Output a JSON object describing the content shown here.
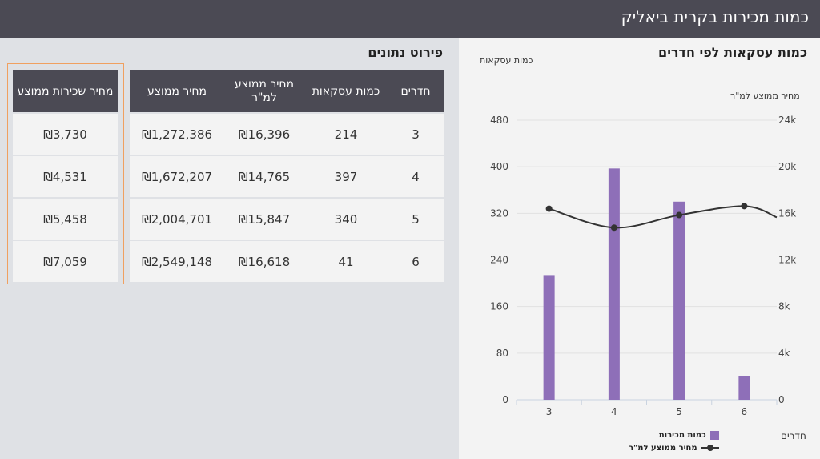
{
  "header": {
    "title": "כמות מכירות בקרית ביאליק"
  },
  "table_section": {
    "title": "פירוט נתונים",
    "main_headers": [
      "חדרים",
      "כמות עסקאות",
      "מחיר ממוצע למ\"ר",
      "מחיר ממוצע"
    ],
    "side_header": "מחיר שכירות ממוצע",
    "rows": [
      {
        "rooms": "3",
        "deals": "214",
        "avg_sqm": "₪16,396",
        "avg_price": "₪1,272,386",
        "avg_rent": "₪3,730"
      },
      {
        "rooms": "4",
        "deals": "397",
        "avg_sqm": "₪14,765",
        "avg_price": "₪1,672,207",
        "avg_rent": "₪4,531"
      },
      {
        "rooms": "5",
        "deals": "340",
        "avg_sqm": "₪15,847",
        "avg_price": "₪2,004,701",
        "avg_rent": "₪5,458"
      },
      {
        "rooms": "6",
        "deals": "41",
        "avg_sqm": "₪16,618",
        "avg_price": "₪2,549,148",
        "avg_rent": "₪7,059"
      }
    ]
  },
  "chart_section": {
    "title": "כמות עסקאות לפי חדרים"
  },
  "chart_data": {
    "type": "bar",
    "title": "כמות עסקאות לפי חדרים",
    "xlabel": "חדרים",
    "ylabel": "כמות עסקאות",
    "y2label": "מחיר ממוצע למ\"ר",
    "categories": [
      "3",
      "4",
      "5",
      "6"
    ],
    "ylim": [
      0,
      480
    ],
    "y_ticks": [
      0,
      80,
      160,
      240,
      320,
      400,
      480
    ],
    "y2lim": [
      0,
      24000
    ],
    "y2_ticks": [
      0,
      4000,
      8000,
      12000,
      16000,
      20000,
      24000
    ],
    "y2_tick_labels": [
      "0",
      "4k",
      "8k",
      "12k",
      "16k",
      "20k",
      "24k"
    ],
    "grid": true,
    "legend_position": "bottom",
    "series": [
      {
        "name": "כמות מכירות",
        "type": "bar",
        "axis": "left",
        "color": "#8e6fb8",
        "values": [
          214,
          397,
          340,
          41
        ]
      },
      {
        "name": "מחיר ממוצע למ\"ר",
        "type": "line",
        "axis": "right",
        "color": "#333333",
        "values": [
          16396,
          14765,
          15847,
          16618
        ]
      }
    ]
  }
}
